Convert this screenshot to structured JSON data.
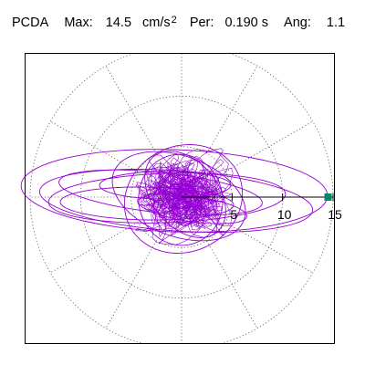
{
  "header": {
    "label": "PCDA",
    "max_label": "Max:",
    "max_value": "14.5",
    "max_unit": "cm/s",
    "max_unit_power": "2",
    "per_label": "Per:",
    "per_value": "0.190 s",
    "ang_label": "Ang:",
    "ang_value": "1.1"
  },
  "chart_data": {
    "type": "polar-orbit",
    "title": "PCDA",
    "max_amplitude": 14.5,
    "max_unit": "cm/s2",
    "period_s": 0.19,
    "angle": 1.1,
    "r_max": 15,
    "r_gridlines": [
      5,
      10,
      15
    ],
    "angular_gridlines_deg": [
      0,
      30,
      60,
      90,
      120,
      150,
      180,
      210,
      240,
      270,
      300,
      330
    ],
    "radial_ticks": [
      {
        "value": 5,
        "label": "5"
      },
      {
        "value": 10,
        "label": "10"
      },
      {
        "value": 15,
        "label": "15"
      }
    ],
    "peak_marker": {
      "r": 14.5,
      "angle_deg": 0
    },
    "trace_color": "#9400d3",
    "marker_color": "#00896b",
    "grid": "dotted"
  }
}
